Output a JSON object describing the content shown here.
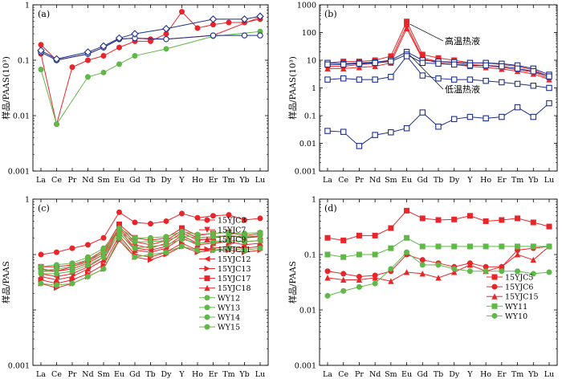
{
  "colors": {
    "red": "#e8262a",
    "green": "#60b848",
    "blue": "#1c2f8c",
    "black": "#000000"
  },
  "chart_data": [
    {
      "type": "line",
      "panel": "(a)",
      "scale": "log",
      "ylim": [
        0.001,
        1
      ],
      "yticks": [
        "1",
        "0.1",
        "0.01",
        "0.001"
      ],
      "ylabel": "样品/PAAS(10³)",
      "categories": [
        "La",
        "Ce",
        "Pr",
        "Nd",
        "Sm",
        "Eu",
        "Gd",
        "Tb",
        "Dy",
        "Y",
        "Ho",
        "Er",
        "Tm",
        "Yb",
        "Lu"
      ],
      "series": [
        {
          "color": "red",
          "marker": "circle-filled",
          "points": [
            [
              "La",
              0.13
            ],
            [
              "Ce",
              0.007
            ],
            [
              "Pr",
              0.075
            ],
            [
              "Nd",
              0.1
            ],
            [
              "Sm",
              0.12
            ],
            [
              "Eu",
              0.17
            ],
            [
              "Gd",
              0.22
            ],
            [
              "Tb",
              0.22
            ],
            [
              "Dy",
              0.3
            ],
            [
              "Y",
              0.75
            ],
            [
              "Ho",
              0.38
            ],
            [
              "Er",
              0.44
            ],
            [
              "Tm",
              0.48
            ],
            [
              "Yb",
              0.48
            ],
            [
              "Lu",
              0.55
            ]
          ]
        },
        {
          "color": "red",
          "marker": "circle-filled",
          "points": [
            [
              "La",
              0.19
            ],
            [
              "Ce",
              0.1
            ],
            [
              "Nd",
              0.13
            ],
            [
              "Sm",
              0.17
            ],
            [
              "Eu",
              0.24
            ],
            [
              "Gd",
              0.25
            ],
            [
              "Tb",
              0.24
            ],
            [
              "Dy",
              0.24
            ],
            [
              "Er",
              0.28
            ],
            [
              "Lu",
              0.6
            ]
          ]
        },
        {
          "color": "green",
          "marker": "circle-filled",
          "points": [
            [
              "La",
              0.068
            ],
            [
              "Ce",
              0.007
            ],
            [
              "Nd",
              0.05
            ],
            [
              "Sm",
              0.06
            ],
            [
              "Eu",
              0.085
            ],
            [
              "Gd",
              0.12
            ],
            [
              "Dy",
              0.16
            ],
            [
              "Er",
              0.27
            ],
            [
              "Lu",
              0.33
            ]
          ]
        },
        {
          "color": "blue",
          "marker": "circle-open",
          "points": [
            [
              "La",
              0.14
            ],
            [
              "Ce",
              0.1
            ],
            [
              "Nd",
              0.13
            ],
            [
              "Sm",
              0.17
            ],
            [
              "Eu",
              0.24
            ],
            [
              "Gd",
              0.25
            ],
            [
              "Dy",
              0.24
            ],
            [
              "Er",
              0.28
            ],
            [
              "Yb",
              0.28
            ],
            [
              "Lu",
              0.28
            ]
          ]
        },
        {
          "color": "blue",
          "marker": "diamond-open",
          "points": [
            [
              "La",
              0.15
            ],
            [
              "Ce",
              0.105
            ],
            [
              "Nd",
              0.14
            ],
            [
              "Sm",
              0.18
            ],
            [
              "Eu",
              0.25
            ],
            [
              "Gd",
              0.3
            ],
            [
              "Dy",
              0.37
            ],
            [
              "Er",
              0.55
            ],
            [
              "Yb",
              0.55
            ],
            [
              "Lu",
              0.62
            ]
          ]
        }
      ]
    },
    {
      "type": "line",
      "panel": "(b)",
      "scale": "log",
      "ylim": [
        0.001,
        1000
      ],
      "yticks": [
        "1000",
        "100",
        "10",
        "1",
        "0.1",
        "0.01",
        "0.001"
      ],
      "ylabel": "样品/PAAS(10³)",
      "categories": [
        "La",
        "Ce",
        "Pr",
        "Nd",
        "Sm",
        "Eu",
        "Gd",
        "Tb",
        "Dy",
        "Y",
        "Ho",
        "Er",
        "Tm",
        "Yb",
        "Lu"
      ],
      "annotations": [
        {
          "text": "高温热液",
          "from": [
            "Eu",
            200
          ],
          "to": [
            "Tb",
            50
          ]
        },
        {
          "text": "低温热液",
          "from": [
            "Eu",
            15
          ],
          "to": [
            "Tb",
            0.9
          ]
        }
      ],
      "series": [
        {
          "color": "red",
          "marker": "square-filled",
          "values": [
            8,
            9,
            9,
            10,
            14,
            250,
            16,
            12,
            10,
            8,
            8,
            7,
            6,
            4.5,
            2.6
          ]
        },
        {
          "color": "red",
          "marker": "circle-filled",
          "values": [
            6,
            6,
            7,
            7.5,
            10,
            180,
            12,
            9,
            8,
            7,
            6.5,
            5.5,
            4.5,
            3.8,
            2.2
          ]
        },
        {
          "color": "red",
          "marker": "triangle-filled",
          "values": [
            5,
            5,
            5.5,
            6,
            8,
            140,
            11,
            8,
            7,
            6,
            5.5,
            4.8,
            4,
            3.2,
            2
          ]
        },
        {
          "color": "blue",
          "marker": "square-open",
          "values": [
            8,
            7.5,
            8,
            8.5,
            10,
            20,
            10,
            9,
            8.5,
            8,
            8,
            7.5,
            6.5,
            5,
            3
          ]
        },
        {
          "color": "blue",
          "marker": "square-open",
          "values": [
            7,
            7,
            7.5,
            8,
            9,
            16,
            8,
            7.5,
            7,
            6.5,
            6.5,
            6,
            5,
            4,
            2.6
          ]
        },
        {
          "color": "blue",
          "marker": "square-open",
          "values": [
            2,
            2.2,
            2,
            2,
            2.5,
            14,
            2.8,
            2.2,
            2,
            2,
            1.8,
            1.6,
            1.4,
            1.2,
            1
          ]
        },
        {
          "color": "blue",
          "marker": "square-open",
          "values": [
            0.028,
            0.026,
            0.008,
            0.02,
            0.025,
            0.035,
            0.13,
            0.04,
            0.075,
            0.09,
            0.08,
            0.09,
            0.2,
            0.09,
            0.28
          ]
        }
      ]
    },
    {
      "type": "line",
      "panel": "(c)",
      "scale": "log",
      "ylim": [
        0.001,
        1
      ],
      "yticks": [
        "1",
        "0.001"
      ],
      "ylabel": "样品/PAAS",
      "categories": [
        "La",
        "Ce",
        "Pr",
        "Nd",
        "Sm",
        "Eu",
        "Gd",
        "Tb",
        "Dy",
        "Y",
        "Ho",
        "Er",
        "Tm",
        "Yb",
        "Lu"
      ],
      "legend": [
        "15YJC3",
        "15YJC7",
        "15YJC9",
        "15YJC11",
        "15YJC12",
        "15YJC13",
        "15YJC17",
        "15YJC18",
        "WY12",
        "WY13",
        "WY14",
        "WY15"
      ],
      "series": [
        {
          "name": "15YJC3",
          "color": "red",
          "marker": "circle-filled",
          "values": [
            0.1,
            0.11,
            0.13,
            0.15,
            0.2,
            0.58,
            0.38,
            0.36,
            0.4,
            0.55,
            0.46,
            0.5,
            0.52,
            0.42,
            0.45
          ]
        },
        {
          "name": "15YJC7",
          "color": "red",
          "marker": "triangle-down",
          "values": [
            0.05,
            0.05,
            0.055,
            0.07,
            0.1,
            0.3,
            0.15,
            0.13,
            0.16,
            0.25,
            0.18,
            0.2,
            0.22,
            0.2,
            0.22
          ]
        },
        {
          "name": "15YJC9",
          "color": "red",
          "marker": "triangle-filled",
          "values": [
            0.04,
            0.035,
            0.04,
            0.055,
            0.08,
            0.25,
            0.12,
            0.11,
            0.13,
            0.2,
            0.15,
            0.16,
            0.17,
            0.15,
            0.16
          ]
        },
        {
          "name": "15YJC11",
          "color": "red",
          "marker": "triangle-right",
          "values": [
            0.035,
            0.03,
            0.035,
            0.045,
            0.065,
            0.22,
            0.1,
            0.09,
            0.11,
            0.16,
            0.12,
            0.13,
            0.14,
            0.13,
            0.14
          ]
        },
        {
          "name": "15YJC12",
          "color": "red",
          "marker": "triangle-left",
          "values": [
            0.045,
            0.04,
            0.045,
            0.06,
            0.09,
            0.28,
            0.13,
            0.12,
            0.14,
            0.22,
            0.16,
            0.17,
            0.18,
            0.17,
            0.18
          ]
        },
        {
          "name": "15YJC13",
          "color": "red",
          "marker": "triangle-right",
          "values": [
            0.03,
            0.025,
            0.03,
            0.04,
            0.055,
            0.18,
            0.09,
            0.08,
            0.1,
            0.14,
            0.11,
            0.12,
            0.12,
            0.11,
            0.12
          ]
        },
        {
          "name": "15YJC17",
          "color": "red",
          "marker": "square-filled",
          "values": [
            0.06,
            0.06,
            0.065,
            0.08,
            0.12,
            0.35,
            0.2,
            0.18,
            0.2,
            0.3,
            0.22,
            0.24,
            0.25,
            0.22,
            0.24
          ]
        },
        {
          "name": "15YJC18",
          "color": "red",
          "marker": "triangle-filled",
          "values": [
            0.055,
            0.05,
            0.06,
            0.075,
            0.11,
            0.32,
            0.17,
            0.15,
            0.18,
            0.27,
            0.2,
            0.21,
            0.22,
            0.2,
            0.21
          ]
        },
        {
          "name": "WY12",
          "color": "green",
          "marker": "circle-filled",
          "values": [
            0.06,
            0.065,
            0.07,
            0.09,
            0.13,
            0.3,
            0.2,
            0.2,
            0.21,
            0.26,
            0.23,
            0.24,
            0.25,
            0.24,
            0.25
          ]
        },
        {
          "name": "WY13",
          "color": "green",
          "marker": "circle-filled",
          "values": [
            0.05,
            0.055,
            0.06,
            0.08,
            0.11,
            0.26,
            0.17,
            0.17,
            0.18,
            0.22,
            0.2,
            0.21,
            0.22,
            0.21,
            0.22
          ]
        },
        {
          "name": "WY14",
          "color": "green",
          "marker": "circle-filled",
          "values": [
            0.03,
            0.028,
            0.03,
            0.04,
            0.055,
            0.2,
            0.09,
            0.1,
            0.11,
            0.14,
            0.12,
            0.12,
            0.13,
            0.12,
            0.13
          ]
        },
        {
          "name": "WY15",
          "color": "green",
          "marker": "circle-filled",
          "values": [
            0.045,
            0.045,
            0.05,
            0.065,
            0.09,
            0.24,
            0.13,
            0.14,
            0.15,
            0.19,
            0.16,
            0.17,
            0.18,
            0.17,
            0.18
          ]
        }
      ]
    },
    {
      "type": "line",
      "panel": "(d)",
      "scale": "log",
      "ylim": [
        0.001,
        1
      ],
      "yticks": [
        "1",
        "0.1",
        "0.01",
        "0.001"
      ],
      "ylabel": "样品/PAAS",
      "categories": [
        "La",
        "Ce",
        "Pr",
        "Nd",
        "Sm",
        "Eu",
        "Gd",
        "Tb",
        "Dy",
        "Y",
        "Ho",
        "Er",
        "Tm",
        "Yb",
        "Lu"
      ],
      "legend": [
        "15YJC5",
        "15YJC6",
        "15YJC15",
        "WY11",
        "WY10"
      ],
      "series": [
        {
          "name": "15YJC5",
          "color": "red",
          "marker": "square-filled",
          "values": [
            0.2,
            0.18,
            0.22,
            0.22,
            0.3,
            0.62,
            0.45,
            0.42,
            0.43,
            0.5,
            0.4,
            0.42,
            0.45,
            0.38,
            0.32
          ]
        },
        {
          "name": "15YJC6",
          "color": "red",
          "marker": "circle-filled",
          "values": [
            0.05,
            0.045,
            0.04,
            0.042,
            0.05,
            0.1,
            0.08,
            0.07,
            0.06,
            0.07,
            0.06,
            0.06,
            0.12,
            0.13,
            0.14
          ]
        },
        {
          "name": "15YJC15",
          "color": "red",
          "marker": "triangle-filled",
          "values": [
            0.038,
            0.035,
            0.035,
            0.038,
            0.033,
            0.048,
            0.045,
            0.038,
            0.048,
            0.065,
            0.05,
            0.06,
            0.1,
            0.08,
            0.14
          ]
        },
        {
          "name": "WY11",
          "color": "green",
          "marker": "square-filled",
          "values": [
            0.1,
            0.09,
            0.1,
            0.1,
            0.13,
            0.2,
            0.14,
            0.14,
            0.14,
            0.14,
            0.14,
            0.14,
            0.14,
            0.14,
            0.14
          ]
        },
        {
          "name": "WY10",
          "color": "green",
          "marker": "circle-filled",
          "values": [
            0.018,
            0.022,
            0.026,
            0.03,
            0.055,
            0.11,
            0.065,
            0.065,
            0.055,
            0.05,
            0.05,
            0.05,
            0.05,
            0.045,
            0.048
          ]
        }
      ]
    }
  ]
}
